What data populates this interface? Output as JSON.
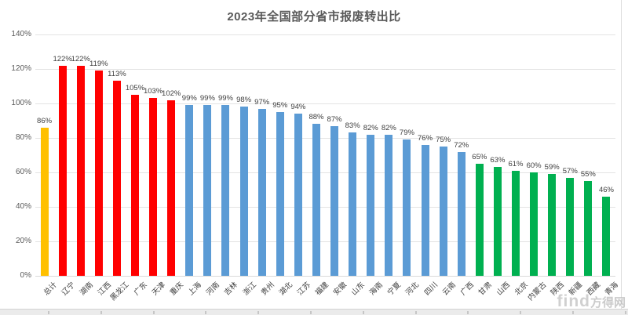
{
  "title": "2023年全国部分省市报废转出比",
  "watermark": {
    "latin": "find",
    "cjk": "方得网"
  },
  "chart_data": {
    "type": "bar",
    "title": "2023年全国部分省市报废转出比",
    "categories": [
      "总计",
      "辽宁",
      "湖南",
      "江西",
      "黑龙江",
      "广东",
      "天津",
      "重庆",
      "上海",
      "河南",
      "吉林",
      "浙江",
      "贵州",
      "湖北",
      "江苏",
      "福建",
      "安徽",
      "山东",
      "海南",
      "宁夏",
      "河北",
      "四川",
      "云南",
      "广西",
      "甘肃",
      "山西",
      "北京",
      "内蒙古",
      "陕西",
      "新疆",
      "西藏",
      "青海"
    ],
    "values": [
      86,
      122,
      122,
      119,
      113,
      105,
      103,
      102,
      99,
      99,
      99,
      98,
      97,
      95,
      94,
      88,
      87,
      83,
      82,
      82,
      79,
      76,
      75,
      72,
      65,
      63,
      61,
      60,
      59,
      57,
      55,
      46
    ],
    "colors": [
      "#FFC000",
      "#FF0000",
      "#FF0000",
      "#FF0000",
      "#FF0000",
      "#FF0000",
      "#FF0000",
      "#FF0000",
      "#5B9BD5",
      "#5B9BD5",
      "#5B9BD5",
      "#5B9BD5",
      "#5B9BD5",
      "#5B9BD5",
      "#5B9BD5",
      "#5B9BD5",
      "#5B9BD5",
      "#5B9BD5",
      "#5B9BD5",
      "#5B9BD5",
      "#5B9BD5",
      "#5B9BD5",
      "#5B9BD5",
      "#5B9BD5",
      "#00B050",
      "#00B050",
      "#00B050",
      "#00B050",
      "#00B050",
      "#00B050",
      "#00B050",
      "#00B050"
    ],
    "color_legend": {
      "total": "#FFC000",
      "above_100": "#FF0000",
      "mid": "#5B9BD5",
      "low": "#00B050"
    },
    "unit": "%",
    "xlabel": "",
    "ylabel": "",
    "ylim": [
      0,
      140
    ],
    "yticks": [
      0,
      20,
      40,
      60,
      80,
      100,
      120,
      140
    ],
    "grid": true,
    "legend_position": "none",
    "data_labels": "outside-end",
    "category_label_rotation_deg": 45
  }
}
